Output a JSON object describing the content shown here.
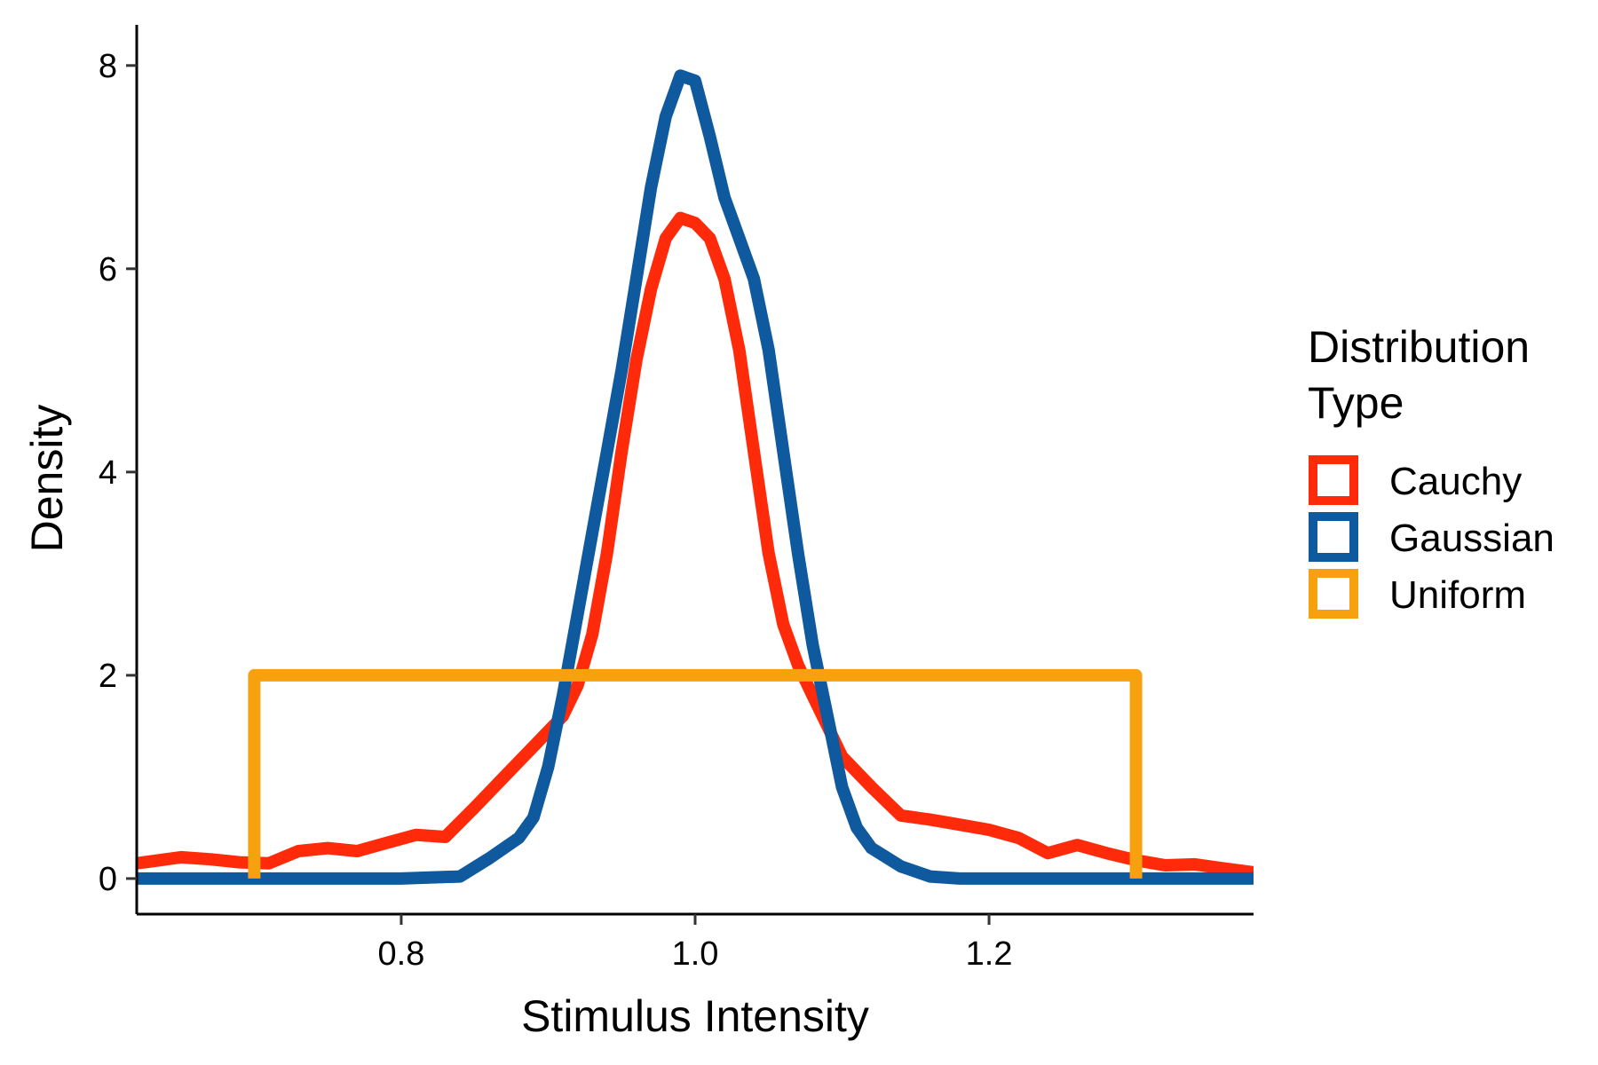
{
  "chart_data": {
    "type": "line",
    "title": "",
    "xlabel": "Stimulus Intensity",
    "ylabel": "Density",
    "xlim": [
      0.62,
      1.38
    ],
    "ylim": [
      -0.35,
      8.4
    ],
    "x_ticks": [
      0.8,
      1.0,
      1.2
    ],
    "x_tick_labels": [
      "0.8",
      "1.0",
      "1.2"
    ],
    "y_ticks": [
      0,
      2,
      4,
      6,
      8
    ],
    "y_tick_labels": [
      "0",
      "2",
      "4",
      "6",
      "8"
    ],
    "grid": false,
    "legend": {
      "title_lines": [
        "Distribution",
        "Type"
      ],
      "placement": "right"
    },
    "series": [
      {
        "name": "Cauchy",
        "color": "#FF2A0A",
        "points": [
          [
            0.62,
            0.15
          ],
          [
            0.63,
            0.17
          ],
          [
            0.65,
            0.21
          ],
          [
            0.67,
            0.19
          ],
          [
            0.69,
            0.16
          ],
          [
            0.71,
            0.15
          ],
          [
            0.73,
            0.27
          ],
          [
            0.75,
            0.3
          ],
          [
            0.77,
            0.27
          ],
          [
            0.79,
            0.35
          ],
          [
            0.81,
            0.43
          ],
          [
            0.83,
            0.41
          ],
          [
            0.85,
            0.7
          ],
          [
            0.87,
            1.0
          ],
          [
            0.89,
            1.3
          ],
          [
            0.91,
            1.6
          ],
          [
            0.92,
            1.9
          ],
          [
            0.93,
            2.4
          ],
          [
            0.94,
            3.2
          ],
          [
            0.95,
            4.2
          ],
          [
            0.96,
            5.1
          ],
          [
            0.97,
            5.8
          ],
          [
            0.98,
            6.3
          ],
          [
            0.99,
            6.5
          ],
          [
            1.0,
            6.45
          ],
          [
            1.01,
            6.3
          ],
          [
            1.02,
            5.9
          ],
          [
            1.03,
            5.2
          ],
          [
            1.04,
            4.2
          ],
          [
            1.05,
            3.2
          ],
          [
            1.06,
            2.5
          ],
          [
            1.07,
            2.1
          ],
          [
            1.08,
            1.8
          ],
          [
            1.09,
            1.5
          ],
          [
            1.1,
            1.2
          ],
          [
            1.12,
            0.9
          ],
          [
            1.14,
            0.62
          ],
          [
            1.16,
            0.58
          ],
          [
            1.18,
            0.53
          ],
          [
            1.2,
            0.48
          ],
          [
            1.22,
            0.4
          ],
          [
            1.24,
            0.25
          ],
          [
            1.26,
            0.33
          ],
          [
            1.28,
            0.25
          ],
          [
            1.3,
            0.18
          ],
          [
            1.32,
            0.13
          ],
          [
            1.34,
            0.14
          ],
          [
            1.36,
            0.1
          ],
          [
            1.38,
            0.06
          ]
        ]
      },
      {
        "name": "Gaussian",
        "color": "#0F5A9E",
        "points": [
          [
            0.62,
            0.0
          ],
          [
            0.8,
            0.0
          ],
          [
            0.84,
            0.02
          ],
          [
            0.86,
            0.2
          ],
          [
            0.88,
            0.4
          ],
          [
            0.89,
            0.6
          ],
          [
            0.9,
            1.1
          ],
          [
            0.91,
            1.8
          ],
          [
            0.92,
            2.6
          ],
          [
            0.93,
            3.4
          ],
          [
            0.94,
            4.2
          ],
          [
            0.95,
            5.0
          ],
          [
            0.96,
            5.9
          ],
          [
            0.97,
            6.8
          ],
          [
            0.98,
            7.5
          ],
          [
            0.99,
            7.9
          ],
          [
            1.0,
            7.85
          ],
          [
            1.01,
            7.3
          ],
          [
            1.02,
            6.7
          ],
          [
            1.03,
            6.3
          ],
          [
            1.04,
            5.9
          ],
          [
            1.05,
            5.2
          ],
          [
            1.06,
            4.2
          ],
          [
            1.07,
            3.2
          ],
          [
            1.08,
            2.3
          ],
          [
            1.09,
            1.6
          ],
          [
            1.1,
            0.9
          ],
          [
            1.11,
            0.5
          ],
          [
            1.12,
            0.3
          ],
          [
            1.14,
            0.12
          ],
          [
            1.16,
            0.02
          ],
          [
            1.18,
            0.0
          ],
          [
            1.38,
            0.0
          ]
        ]
      },
      {
        "name": "Uniform",
        "color": "#F7A10E",
        "points": [
          [
            0.7,
            0.0
          ],
          [
            0.7,
            2.0
          ],
          [
            1.3,
            2.0
          ],
          [
            1.3,
            0.0
          ]
        ]
      }
    ]
  }
}
